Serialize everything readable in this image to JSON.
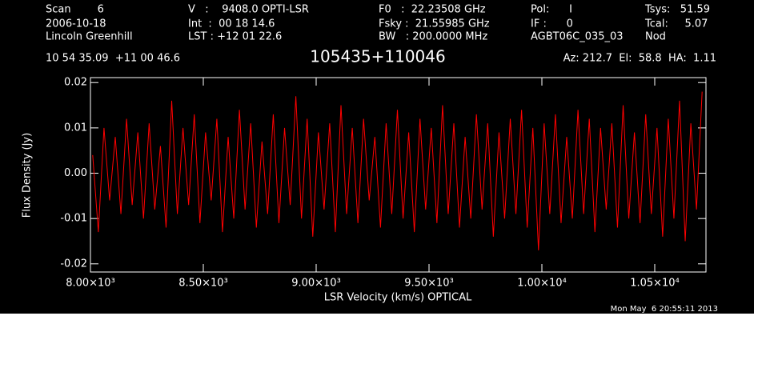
{
  "chart_data": {
    "type": "line",
    "title": "105435+110046",
    "header": [
      [
        "Scan        6",
        "2006-10-18",
        "Lincoln Greenhill"
      ],
      [
        "V   :    9408.0 OPTI-LSR",
        "Int  :  00 18 14.6",
        "LST : +12 01 22.6"
      ],
      [
        "F0   :  22.23508 GHz",
        "Fsky :  21.55985 GHz",
        "BW   : 200.0000 MHz"
      ],
      [
        "Pol:      I",
        "IF :      0",
        "AGBT06C_035_03"
      ],
      [
        "Tsys:   51.59",
        "Tcal:     5.07",
        "Nod"
      ]
    ],
    "coordinates": "10 54 35.09  +11 00 46.6",
    "pointing": "Az: 212.7  El:  58.8  HA:  1.11",
    "timestamp": "Mon May  6 20:55:11 2013",
    "xlabel": "LSR Velocity (km/s) OPTICAL",
    "ylabel": "Flux Density (Jy)",
    "xlim": [
      8000,
      10727
    ],
    "ylim": [
      -0.0218,
      0.0211
    ],
    "xticks": [
      {
        "value": 8000,
        "label": "8.00×10³"
      },
      {
        "value": 8500,
        "label": "8.50×10³"
      },
      {
        "value": 9000,
        "label": "9.00×10³"
      },
      {
        "value": 9500,
        "label": "9.50×10³"
      },
      {
        "value": 10000,
        "label": "1.00×10⁴"
      },
      {
        "value": 10500,
        "label": "1.05×10⁴"
      }
    ],
    "yticks": [
      -0.02,
      -0.01,
      {
        "value": 0,
        "label": "0.00"
      },
      0.01,
      0.02
    ],
    "x": [
      8010,
      8035,
      8060,
      8085,
      8110,
      8135,
      8160,
      8185,
      8210,
      8235,
      8260,
      8285,
      8310,
      8335,
      8360,
      8385,
      8410,
      8435,
      8460,
      8485,
      8510,
      8535,
      8560,
      8585,
      8610,
      8635,
      8660,
      8685,
      8710,
      8735,
      8760,
      8785,
      8810,
      8835,
      8860,
      8885,
      8910,
      8935,
      8960,
      8985,
      9010,
      9035,
      9060,
      9085,
      9110,
      9135,
      9160,
      9185,
      9210,
      9235,
      9260,
      9285,
      9310,
      9335,
      9360,
      9385,
      9410,
      9435,
      9460,
      9485,
      9510,
      9535,
      9560,
      9585,
      9610,
      9635,
      9660,
      9685,
      9710,
      9735,
      9760,
      9785,
      9810,
      9835,
      9860,
      9885,
      9910,
      9935,
      9960,
      9985,
      10010,
      10035,
      10060,
      10085,
      10110,
      10135,
      10160,
      10185,
      10210,
      10235,
      10260,
      10285,
      10310,
      10335,
      10360,
      10385,
      10410,
      10435,
      10460,
      10485,
      10510,
      10535,
      10560,
      10585,
      10610,
      10635,
      10660,
      10685,
      10710
    ],
    "series": [
      {
        "color": "#ff0000",
        "values": [
          0.004,
          -0.013,
          0.01,
          -0.006,
          0.008,
          -0.009,
          0.012,
          -0.007,
          0.009,
          -0.01,
          0.011,
          -0.008,
          0.006,
          -0.012,
          0.016,
          -0.009,
          0.01,
          -0.007,
          0.013,
          -0.011,
          0.009,
          -0.006,
          0.012,
          -0.013,
          0.008,
          -0.01,
          0.014,
          -0.008,
          0.011,
          -0.012,
          0.007,
          -0.009,
          0.013,
          -0.011,
          0.01,
          -0.007,
          0.017,
          -0.01,
          0.012,
          -0.014,
          0.009,
          -0.008,
          0.011,
          -0.013,
          0.015,
          -0.009,
          0.01,
          -0.011,
          0.012,
          -0.006,
          0.008,
          -0.012,
          0.011,
          -0.009,
          0.014,
          -0.01,
          0.009,
          -0.013,
          0.012,
          -0.008,
          0.01,
          -0.011,
          0.015,
          -0.009,
          0.011,
          -0.012,
          0.008,
          -0.01,
          0.013,
          -0.008,
          0.011,
          -0.014,
          0.009,
          -0.01,
          0.012,
          -0.009,
          0.014,
          -0.012,
          0.01,
          -0.017,
          0.011,
          -0.009,
          0.013,
          -0.011,
          0.008,
          -0.01,
          0.014,
          -0.009,
          0.012,
          -0.013,
          0.01,
          -0.008,
          0.011,
          -0.012,
          0.015,
          -0.01,
          0.009,
          -0.011,
          0.013,
          -0.009,
          0.01,
          -0.014,
          0.012,
          -0.01,
          0.016,
          -0.015,
          0.011,
          -0.008,
          0.018
        ]
      }
    ]
  }
}
